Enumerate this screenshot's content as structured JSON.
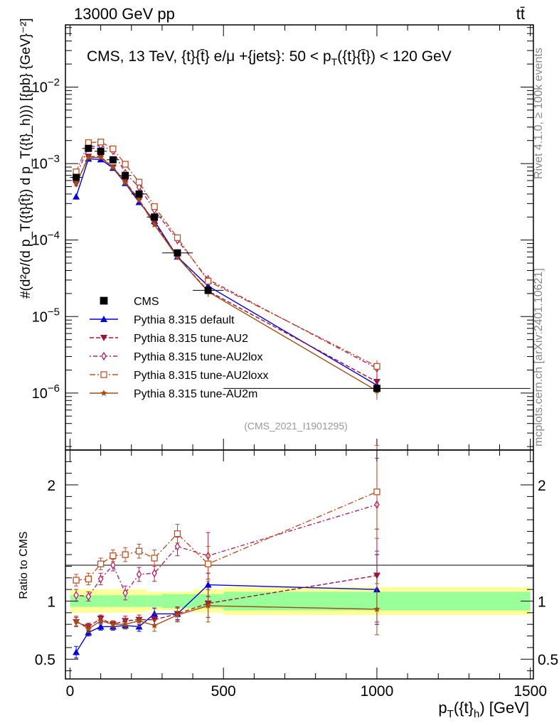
{
  "header": {
    "left": "13000 GeV pp",
    "right": "tt̄"
  },
  "side": {
    "rivet": "Rivet 4.1.0, ≥ 100k events",
    "mcplots": "mcplots.cern.ch [arXiv:2401.10621]"
  },
  "chart_data": {
    "type": "scatter",
    "title": "CMS, 13 TeV, {t}{t̄} e/μ +{jets}: 50 <  p_T({t}{t̄}) < 120 GeV",
    "title_parts": {
      "main": "CMS, 13 TeV, {t}{t̄} e/μ +{jets}: 50 <  p",
      "sub": "T",
      "tail": "({t}{t̄}) < 120 GeV"
    },
    "analysis_tag": "(CMS_2021_I1901295)",
    "xlabel": {
      "main": "p",
      "sub": "T",
      "mid": "({t}",
      "sub2": "h",
      "tail": ") [GeV]"
    },
    "ylabel": "#(d²σ/(d p_T({t}{t̄}) d p_T({t}_h))) [{pb} {GeV}⁻²]",
    "ratio_ylabel": "Ratio to CMS",
    "xlim": [
      -15,
      1510
    ],
    "ylim_log": [
      1.8e-07,
      0.065
    ],
    "ratio_ylim": [
      0.33,
      2.3
    ],
    "x_ticks": [
      0,
      500,
      1000,
      1500
    ],
    "x_tick_labels": [
      "0",
      "500",
      "1000",
      "1500"
    ],
    "y_major_ticks": [
      1e-06,
      1e-05,
      0.0001,
      0.001,
      0.01
    ],
    "y_tick_labels": [
      {
        "base": "10",
        "exp": "−6"
      },
      {
        "base": "10",
        "exp": "−5"
      },
      {
        "base": "10",
        "exp": "−4"
      },
      {
        "base": "10",
        "exp": "−3"
      },
      {
        "base": "10",
        "exp": "−2"
      }
    ],
    "ratio_ticks": [
      0.5,
      1,
      2
    ],
    "ratio_tick_labels": [
      "0.5",
      "1",
      "2"
    ],
    "x": [
      20,
      60,
      100,
      140,
      180,
      225,
      275,
      350,
      450,
      1000
    ],
    "data": {
      "name": "CMS",
      "values": [
        0.00066,
        0.00158,
        0.00145,
        0.00112,
        0.0007,
        0.0004,
        0.0002,
        6.8e-05,
        2.2e-05,
        1.15e-06
      ],
      "bins": [
        [
          0,
          40
        ],
        [
          40,
          80
        ],
        [
          80,
          120
        ],
        [
          120,
          160
        ],
        [
          160,
          200
        ],
        [
          200,
          250
        ],
        [
          250,
          300
        ],
        [
          300,
          400
        ],
        [
          400,
          500
        ],
        [
          500,
          1500
        ]
      ],
      "band_stat": [
        0.05,
        0.05,
        0.05,
        0.05,
        0.05,
        0.05,
        0.05,
        0.06,
        0.06,
        0.08
      ],
      "band_total": [
        0.1,
        0.1,
        0.1,
        0.1,
        0.1,
        0.1,
        0.08,
        0.08,
        0.1,
        0.12
      ],
      "band_edges": [
        [
          0,
          40
        ],
        [
          40,
          80
        ],
        [
          80,
          120
        ],
        [
          120,
          160
        ],
        [
          160,
          200
        ],
        [
          200,
          250
        ],
        [
          250,
          300
        ],
        [
          300,
          400
        ],
        [
          400,
          500
        ],
        [
          500,
          1500
        ]
      ]
    },
    "series": [
      {
        "name": "Pythia 8.315 default",
        "color": "#0000e0",
        "marker": "triangle-up",
        "dash": "",
        "ratio": [
          0.56,
          0.73,
          0.78,
          0.78,
          0.79,
          0.78,
          0.89,
          0.89,
          1.14,
          1.1
        ],
        "ratio_err": [
          0.05,
          0.03,
          0.03,
          0.03,
          0.03,
          0.04,
          0.05,
          0.05,
          0.1,
          0.3
        ]
      },
      {
        "name": "Pythia 8.315 tune-AU2",
        "color": "#a0103c",
        "marker": "triangle-down",
        "dash": "6,3",
        "ratio": [
          0.82,
          0.78,
          0.85,
          0.8,
          0.83,
          0.84,
          0.84,
          0.89,
          0.98,
          1.22
        ],
        "ratio_err": [
          0.04,
          0.03,
          0.03,
          0.03,
          0.04,
          0.04,
          0.05,
          0.06,
          0.12,
          0.4
        ]
      },
      {
        "name": "Pythia 8.315 tune-AU2lox",
        "color": "#b0206a",
        "marker": "diamond",
        "dash": "2,3,6,3",
        "ratio": [
          1.05,
          1.04,
          1.19,
          1.31,
          1.07,
          1.23,
          1.24,
          1.47,
          1.39,
          1.83
        ],
        "ratio_err": [
          0.05,
          0.04,
          0.05,
          0.05,
          0.06,
          0.06,
          0.07,
          0.08,
          0.2,
          0.4
        ]
      },
      {
        "name": "Pythia 8.315 tune-AU2loxx",
        "color": "#c05020",
        "marker": "square-open",
        "dash": "8,3,2,3",
        "ratio": [
          1.18,
          1.19,
          1.32,
          1.39,
          1.4,
          1.43,
          1.37,
          1.58,
          1.32,
          1.94
        ],
        "ratio_err": [
          0.05,
          0.05,
          0.05,
          0.05,
          0.06,
          0.06,
          0.07,
          0.08,
          0.15,
          0.4
        ]
      },
      {
        "name": "Pythia 8.315 tune-AU2m",
        "color": "#a05010",
        "marker": "star",
        "dash": "",
        "ratio": [
          0.83,
          0.76,
          0.83,
          0.8,
          0.8,
          0.83,
          0.79,
          0.88,
          0.96,
          0.93
        ],
        "ratio_err": [
          0.04,
          0.03,
          0.03,
          0.03,
          0.04,
          0.05,
          0.05,
          0.06,
          0.14,
          0.22
        ]
      }
    ]
  }
}
